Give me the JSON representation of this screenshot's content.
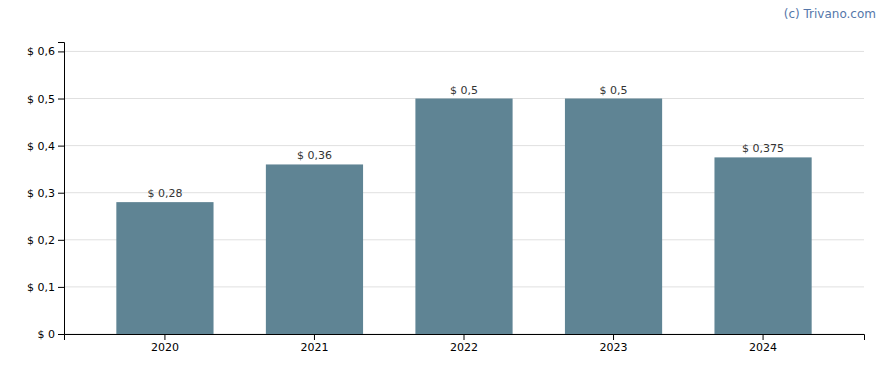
{
  "chart_data": {
    "type": "bar",
    "categories": [
      "2020",
      "2021",
      "2022",
      "2023",
      "2024"
    ],
    "values": [
      0.28,
      0.36,
      0.5,
      0.5,
      0.375
    ],
    "value_labels": [
      "$ 0,28",
      "$ 0,36",
      "$ 0,5",
      "$ 0,5",
      "$ 0,375"
    ],
    "data_labels": true,
    "color": "#5f8494",
    "ylim": [
      0,
      0.62
    ],
    "yticks": [
      {
        "value": 0.0,
        "label": "$ 0"
      },
      {
        "value": 0.1,
        "label": "$ 0,1"
      },
      {
        "value": 0.2,
        "label": "$ 0,2"
      },
      {
        "value": 0.3,
        "label": "$ 0,3"
      },
      {
        "value": 0.4,
        "label": "$ 0,4"
      },
      {
        "value": 0.5,
        "label": "$ 0,5"
      },
      {
        "value": 0.6,
        "label": "$ 0,6"
      }
    ],
    "grid": true,
    "annotations": [
      "(c) Trivano.com"
    ]
  }
}
